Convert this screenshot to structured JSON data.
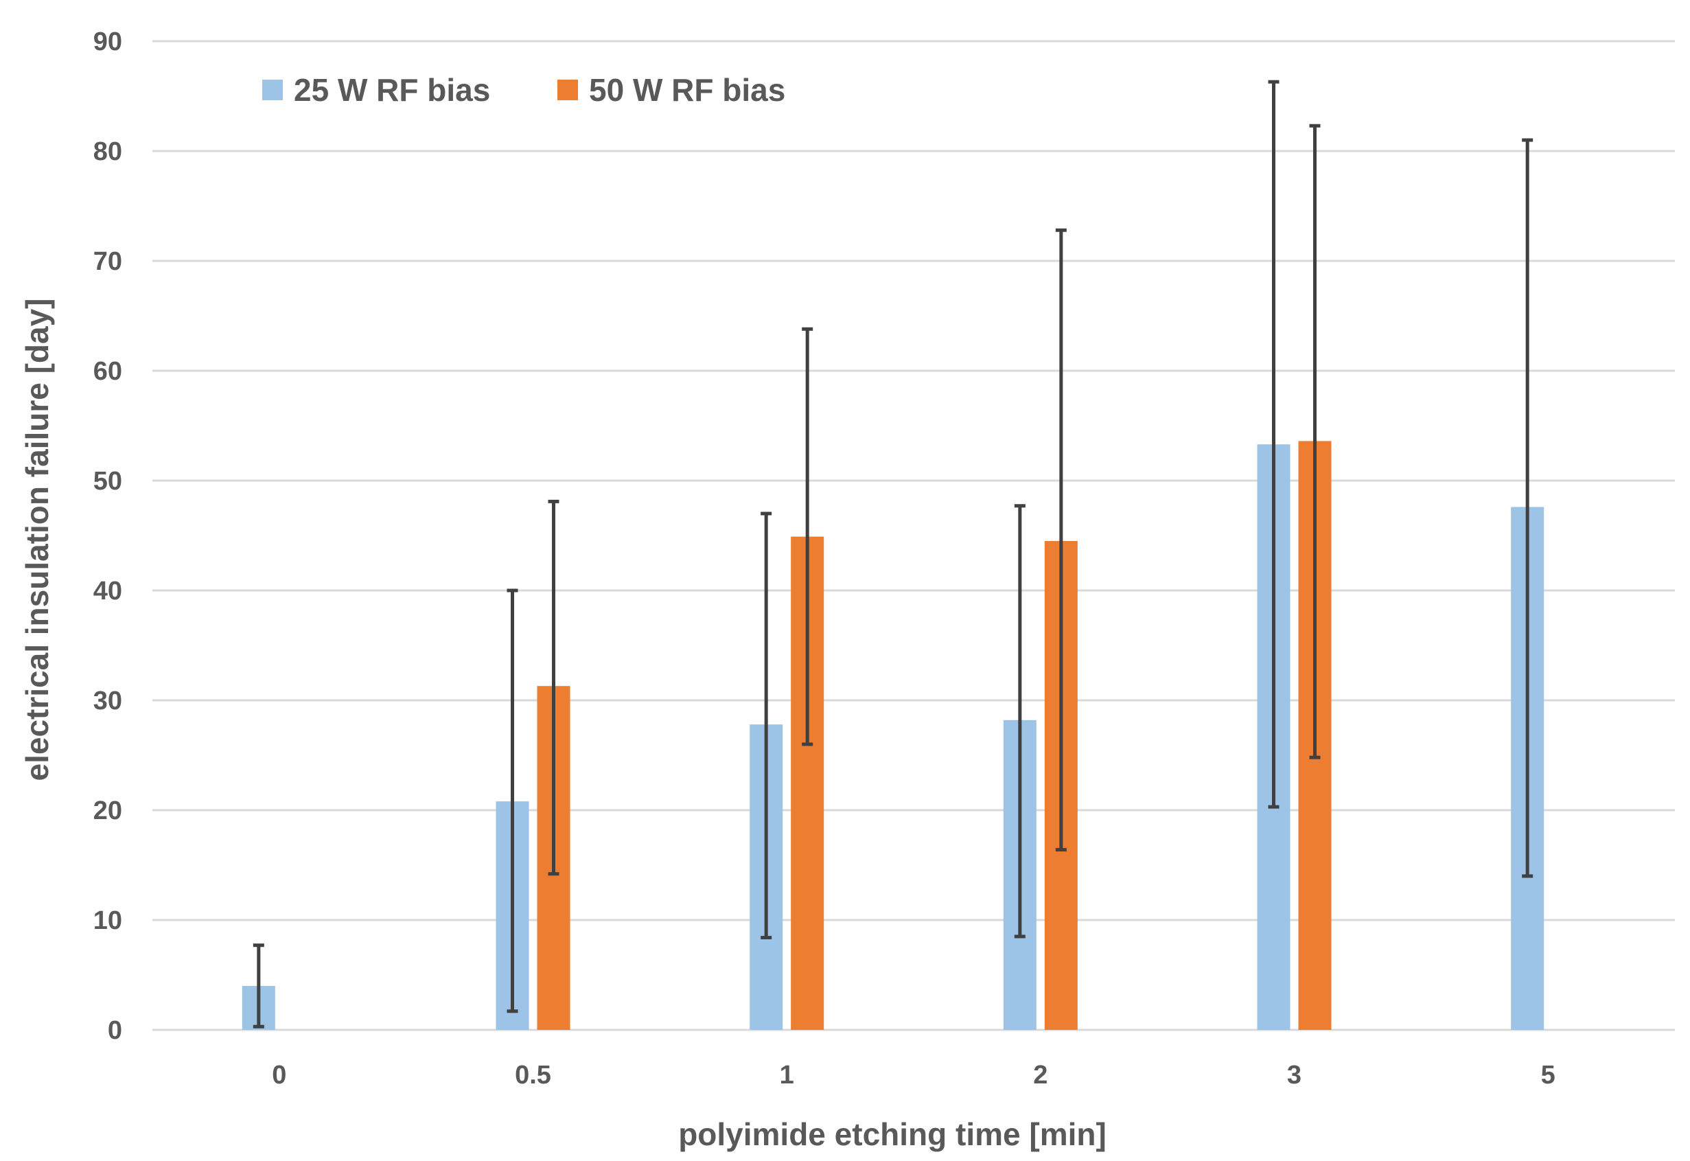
{
  "chart_data": {
    "type": "bar",
    "title": "",
    "xlabel": "polyimide etching time [min]",
    "ylabel": "electrical insulation failure [day]",
    "ylim": [
      0,
      90
    ],
    "yticks": [
      "0",
      "10",
      "20",
      "30",
      "40",
      "50",
      "60",
      "70",
      "80",
      "90"
    ],
    "categories": [
      "0",
      "0.5",
      "1",
      "2",
      "3",
      "5"
    ],
    "grid": true,
    "legend_position": "top-left",
    "series": [
      {
        "name": "25 W RF bias",
        "color": "#9DC3E6",
        "values": [
          4,
          20.8,
          27.8,
          28.2,
          53.3,
          47.6
        ],
        "error_low": [
          0.3,
          1.7,
          8.4,
          8.5,
          20.3,
          14
        ],
        "error_high": [
          7.7,
          40,
          47,
          47.7,
          86.3,
          81
        ]
      },
      {
        "name": "50 W RF bias",
        "color": "#ED7D31",
        "values": [
          null,
          31.3,
          44.9,
          44.5,
          53.6,
          null
        ],
        "error_low": [
          null,
          14.2,
          26,
          16.4,
          24.8,
          null
        ],
        "error_high": [
          null,
          48.1,
          63.8,
          72.8,
          82.3,
          null
        ]
      }
    ],
    "error_bar_color": "#404040",
    "gridline_color": "#d9d9d9"
  }
}
